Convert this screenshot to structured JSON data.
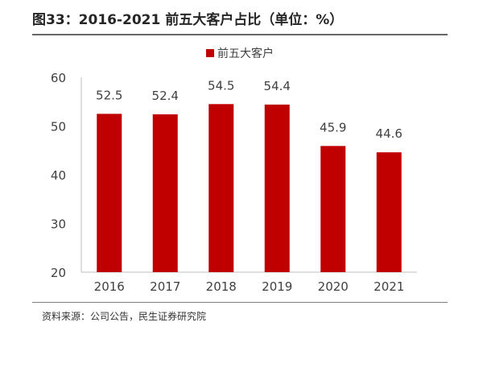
{
  "figure": {
    "title": "图33：2016-2021 前五大客户占比（单位：%）",
    "source": "资料来源：公司公告，民生证券研究院"
  },
  "colors": {
    "bar": "#C00000",
    "axis": "#BFBFBF",
    "text": "#404040"
  },
  "chart_data": {
    "type": "bar",
    "categories": [
      "2016",
      "2017",
      "2018",
      "2019",
      "2020",
      "2021"
    ],
    "series": [
      {
        "name": "前五大客户",
        "values": [
          52.5,
          52.4,
          54.5,
          54.4,
          45.9,
          44.6
        ]
      }
    ],
    "ylim": [
      20,
      60
    ],
    "yticks": [
      "20",
      "30",
      "40",
      "50",
      "60"
    ],
    "legend_position": "top",
    "grid": false,
    "data_labels": true
  }
}
